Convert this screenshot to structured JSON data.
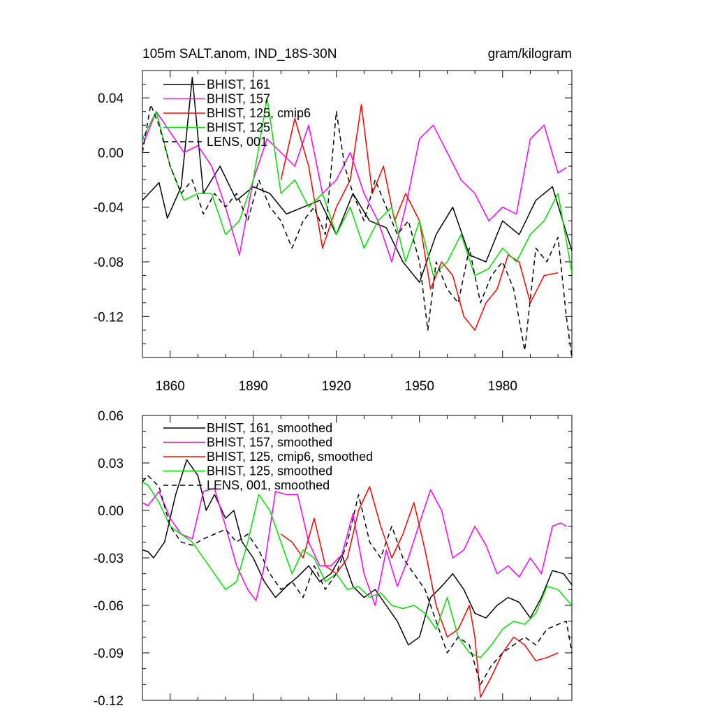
{
  "chart_data": [
    {
      "type": "line",
      "title": "105m SALT.anom, IND_18S-30N",
      "units": "gram/kilogram",
      "xlabel": "",
      "ylabel": "",
      "xlim": [
        1850,
        2005
      ],
      "ylim": [
        -0.15,
        0.06
      ],
      "xticks": [
        1860,
        1890,
        1920,
        1950,
        1980
      ],
      "xtick_labels": [
        "1860",
        "1890",
        "1920",
        "1950",
        "1980"
      ],
      "yticks": [
        0.04,
        0.0,
        -0.04,
        -0.08,
        -0.12
      ],
      "ytick_labels": [
        "0.04",
        "0.00",
        "-0.04",
        "-0.08",
        "-0.12"
      ],
      "legend_position": "top-left",
      "series": [
        {
          "name": "BHIST, 161",
          "color": "#000000",
          "dash": "solid",
          "x": [
            1850,
            1856,
            1859,
            1864,
            1868,
            1872,
            1878,
            1884,
            1890,
            1896,
            1902,
            1908,
            1914,
            1920,
            1926,
            1932,
            1938,
            1944,
            1950,
            1956,
            1962,
            1968,
            1974,
            1980,
            1986,
            1992,
            1998,
            2005
          ],
          "values": [
            -0.035,
            -0.022,
            -0.048,
            -0.025,
            0.055,
            -0.03,
            -0.01,
            -0.035,
            -0.025,
            -0.03,
            -0.045,
            -0.04,
            -0.035,
            -0.06,
            -0.03,
            -0.05,
            -0.055,
            -0.08,
            -0.095,
            -0.06,
            -0.04,
            -0.075,
            -0.08,
            -0.05,
            -0.06,
            -0.035,
            -0.025,
            -0.072
          ]
        },
        {
          "name": "BHIST, 157",
          "color": "#ff00ff",
          "dash": "solid",
          "x": [
            1850,
            1855,
            1860,
            1865,
            1870,
            1875,
            1880,
            1885,
            1890,
            1895,
            1900,
            1905,
            1910,
            1915,
            1920,
            1925,
            1930,
            1935,
            1940,
            1945,
            1950,
            1955,
            1960,
            1965,
            1970,
            1975,
            1980,
            1985,
            1990,
            1995,
            2000,
            2003
          ],
          "values": [
            0.005,
            0.03,
            0.015,
            0.0,
            0.005,
            -0.01,
            -0.04,
            -0.075,
            -0.02,
            0.01,
            0.0,
            -0.01,
            0.02,
            -0.03,
            -0.02,
            0.0,
            -0.03,
            -0.05,
            -0.08,
            -0.04,
            0.01,
            0.02,
            0.0,
            -0.02,
            -0.03,
            -0.05,
            -0.04,
            -0.045,
            0.01,
            0.02,
            -0.015,
            -0.011
          ]
        },
        {
          "name": "BHIST, 125, cmip6",
          "color": "#ff0000",
          "dash": "solid",
          "x": [
            1900,
            1905,
            1910,
            1915,
            1920,
            1925,
            1929,
            1933,
            1937,
            1941,
            1945,
            1950,
            1954,
            1958,
            1962,
            1966,
            1970,
            1974,
            1978,
            1982,
            1986,
            1990,
            1995,
            2000
          ],
          "values": [
            -0.02,
            0.025,
            -0.01,
            -0.07,
            -0.04,
            -0.02,
            0.035,
            -0.03,
            -0.01,
            -0.05,
            -0.03,
            -0.05,
            -0.1,
            -0.08,
            -0.09,
            -0.12,
            -0.13,
            -0.11,
            -0.1,
            -0.075,
            -0.08,
            -0.11,
            -0.09,
            -0.088
          ]
        },
        {
          "name": "BHIST, 125",
          "color": "#00dd00",
          "dash": "solid",
          "x": [
            1850,
            1855,
            1860,
            1865,
            1870,
            1875,
            1880,
            1885,
            1890,
            1895,
            1900,
            1905,
            1910,
            1915,
            1920,
            1925,
            1930,
            1935,
            1940,
            1945,
            1950,
            1955,
            1960,
            1965,
            1970,
            1975,
            1980,
            1985,
            1990,
            1995,
            2000,
            2005
          ],
          "values": [
            0.01,
            0.03,
            -0.01,
            -0.035,
            -0.03,
            -0.03,
            -0.06,
            -0.05,
            -0.02,
            0.04,
            -0.03,
            -0.02,
            -0.04,
            -0.03,
            -0.06,
            -0.04,
            -0.07,
            -0.05,
            -0.04,
            -0.08,
            -0.05,
            -0.09,
            -0.08,
            -0.06,
            -0.09,
            -0.085,
            -0.07,
            -0.08,
            -0.06,
            -0.05,
            -0.03,
            -0.088
          ]
        },
        {
          "name": "LENS, 001",
          "color": "#000000",
          "dash": "dashed",
          "x": [
            1850,
            1853,
            1856,
            1860,
            1864,
            1868,
            1872,
            1876,
            1880,
            1884,
            1888,
            1892,
            1896,
            1900,
            1904,
            1908,
            1912,
            1916,
            1920,
            1923,
            1926,
            1930,
            1934,
            1938,
            1942,
            1946,
            1950,
            1953,
            1956,
            1960,
            1964,
            1968,
            1972,
            1976,
            1980,
            1984,
            1988,
            1992,
            1996,
            2000,
            2003,
            2005
          ],
          "values": [
            0.0,
            0.035,
            0.02,
            -0.01,
            -0.03,
            -0.02,
            -0.045,
            -0.03,
            -0.04,
            -0.03,
            -0.05,
            -0.02,
            -0.04,
            -0.05,
            -0.07,
            -0.05,
            -0.04,
            -0.06,
            0.03,
            -0.01,
            -0.03,
            -0.05,
            -0.02,
            -0.04,
            -0.06,
            -0.05,
            -0.08,
            -0.13,
            -0.08,
            -0.1,
            -0.11,
            -0.07,
            -0.11,
            -0.09,
            -0.08,
            -0.1,
            -0.145,
            -0.07,
            -0.08,
            -0.062,
            -0.12,
            -0.15
          ]
        }
      ]
    },
    {
      "type": "line",
      "title": "",
      "xlabel": "",
      "ylabel": "",
      "xlim": [
        1850,
        2005
      ],
      "ylim": [
        -0.12,
        0.06
      ],
      "yticks": [
        0.06,
        0.03,
        0.0,
        -0.03,
        -0.06,
        -0.09,
        -0.12
      ],
      "ytick_labels": [
        "0.06",
        "0.03",
        "0.00",
        "-0.03",
        "-0.06",
        "-0.09",
        "-0.12"
      ],
      "legend_position": "top-left",
      "series": [
        {
          "name": "BHIST, 161, smoothed",
          "color": "#000000",
          "dash": "solid",
          "x": [
            1850,
            1852,
            1854,
            1858,
            1862,
            1866,
            1870,
            1873,
            1876,
            1880,
            1883,
            1886,
            1890,
            1894,
            1898,
            1902,
            1906,
            1910,
            1914,
            1918,
            1922,
            1926,
            1930,
            1934,
            1938,
            1942,
            1946,
            1950,
            1954,
            1958,
            1962,
            1966,
            1970,
            1974,
            1978,
            1982,
            1986,
            1990,
            1994,
            1998,
            2002,
            2005
          ],
          "values": [
            -0.025,
            -0.026,
            -0.03,
            -0.02,
            0.01,
            0.032,
            0.022,
            0.0,
            0.01,
            -0.005,
            0.0,
            -0.02,
            -0.03,
            -0.045,
            -0.055,
            -0.048,
            -0.042,
            -0.035,
            -0.045,
            -0.04,
            -0.028,
            -0.048,
            -0.055,
            -0.05,
            -0.06,
            -0.07,
            -0.085,
            -0.08,
            -0.055,
            -0.048,
            -0.04,
            -0.05,
            -0.065,
            -0.068,
            -0.06,
            -0.055,
            -0.058,
            -0.068,
            -0.055,
            -0.038,
            -0.04,
            -0.047
          ]
        },
        {
          "name": "BHIST, 157, smoothed",
          "color": "#ff00ff",
          "dash": "solid",
          "x": [
            1850,
            1852,
            1856,
            1860,
            1864,
            1868,
            1872,
            1876,
            1880,
            1884,
            1888,
            1891,
            1894,
            1898,
            1902,
            1906,
            1910,
            1914,
            1918,
            1922,
            1926,
            1930,
            1934,
            1938,
            1942,
            1946,
            1950,
            1954,
            1958,
            1962,
            1966,
            1970,
            1974,
            1978,
            1982,
            1986,
            1990,
            1994,
            1998,
            2001,
            2003
          ],
          "values": [
            0.005,
            0.003,
            0.012,
            -0.005,
            -0.015,
            -0.018,
            0.012,
            0.014,
            -0.01,
            -0.035,
            -0.05,
            -0.057,
            -0.035,
            0.012,
            0.01,
            0.01,
            -0.02,
            -0.035,
            -0.035,
            -0.028,
            -0.002,
            -0.04,
            -0.06,
            -0.025,
            -0.048,
            -0.03,
            -0.008,
            0.013,
            0.0,
            -0.03,
            -0.025,
            -0.01,
            -0.022,
            -0.04,
            -0.035,
            -0.042,
            -0.03,
            -0.04,
            -0.01,
            -0.008,
            -0.01
          ]
        },
        {
          "name": "BHIST, 125, cmip6, smoothed",
          "color": "#ff0000",
          "dash": "solid",
          "x": [
            1900,
            1904,
            1908,
            1912,
            1916,
            1920,
            1924,
            1928,
            1932,
            1936,
            1940,
            1944,
            1948,
            1952,
            1956,
            1960,
            1964,
            1968,
            1970,
            1972,
            1976,
            1980,
            1984,
            1988,
            1992,
            1996,
            2000
          ],
          "values": [
            -0.015,
            -0.02,
            -0.03,
            -0.005,
            -0.035,
            -0.04,
            -0.03,
            0.0,
            0.015,
            -0.01,
            -0.03,
            -0.015,
            0.005,
            -0.025,
            -0.06,
            -0.08,
            -0.075,
            -0.06,
            -0.08,
            -0.118,
            -0.105,
            -0.09,
            -0.08,
            -0.085,
            -0.095,
            -0.093,
            -0.09
          ]
        },
        {
          "name": "BHIST, 125, smoothed",
          "color": "#00dd00",
          "dash": "solid",
          "x": [
            1850,
            1852,
            1856,
            1860,
            1864,
            1868,
            1872,
            1876,
            1880,
            1884,
            1888,
            1892,
            1896,
            1900,
            1904,
            1908,
            1912,
            1916,
            1920,
            1924,
            1928,
            1932,
            1936,
            1940,
            1944,
            1948,
            1952,
            1956,
            1960,
            1964,
            1968,
            1972,
            1976,
            1980,
            1984,
            1988,
            1992,
            1996,
            2000,
            2005
          ],
          "values": [
            0.018,
            0.016,
            0.005,
            -0.01,
            -0.015,
            -0.02,
            -0.03,
            -0.04,
            -0.05,
            -0.045,
            -0.02,
            0.01,
            0.0,
            -0.02,
            -0.04,
            -0.025,
            -0.03,
            -0.045,
            -0.04,
            -0.05,
            -0.048,
            -0.055,
            -0.052,
            -0.06,
            -0.062,
            -0.06,
            -0.065,
            -0.075,
            -0.055,
            -0.08,
            -0.09,
            -0.093,
            -0.085,
            -0.075,
            -0.07,
            -0.072,
            -0.065,
            -0.048,
            -0.05,
            -0.06
          ]
        },
        {
          "name": "LENS, 001, smoothed",
          "color": "#000000",
          "dash": "dashed",
          "x": [
            1850,
            1852,
            1856,
            1860,
            1864,
            1868,
            1872,
            1876,
            1880,
            1884,
            1888,
            1892,
            1896,
            1900,
            1904,
            1908,
            1912,
            1916,
            1920,
            1924,
            1928,
            1932,
            1936,
            1940,
            1944,
            1948,
            1952,
            1956,
            1960,
            1964,
            1968,
            1972,
            1976,
            1980,
            1984,
            1988,
            1992,
            1996,
            2000,
            2003,
            2005
          ],
          "values": [
            0.018,
            0.022,
            0.015,
            -0.01,
            -0.02,
            -0.022,
            -0.018,
            -0.015,
            -0.012,
            -0.02,
            -0.015,
            -0.025,
            -0.04,
            -0.05,
            -0.045,
            -0.055,
            -0.035,
            -0.05,
            -0.04,
            -0.02,
            0.01,
            -0.02,
            -0.03,
            -0.01,
            -0.03,
            -0.04,
            -0.05,
            -0.07,
            -0.09,
            -0.08,
            -0.085,
            -0.11,
            -0.098,
            -0.09,
            -0.085,
            -0.08,
            -0.085,
            -0.075,
            -0.072,
            -0.07,
            -0.09
          ]
        }
      ]
    }
  ]
}
